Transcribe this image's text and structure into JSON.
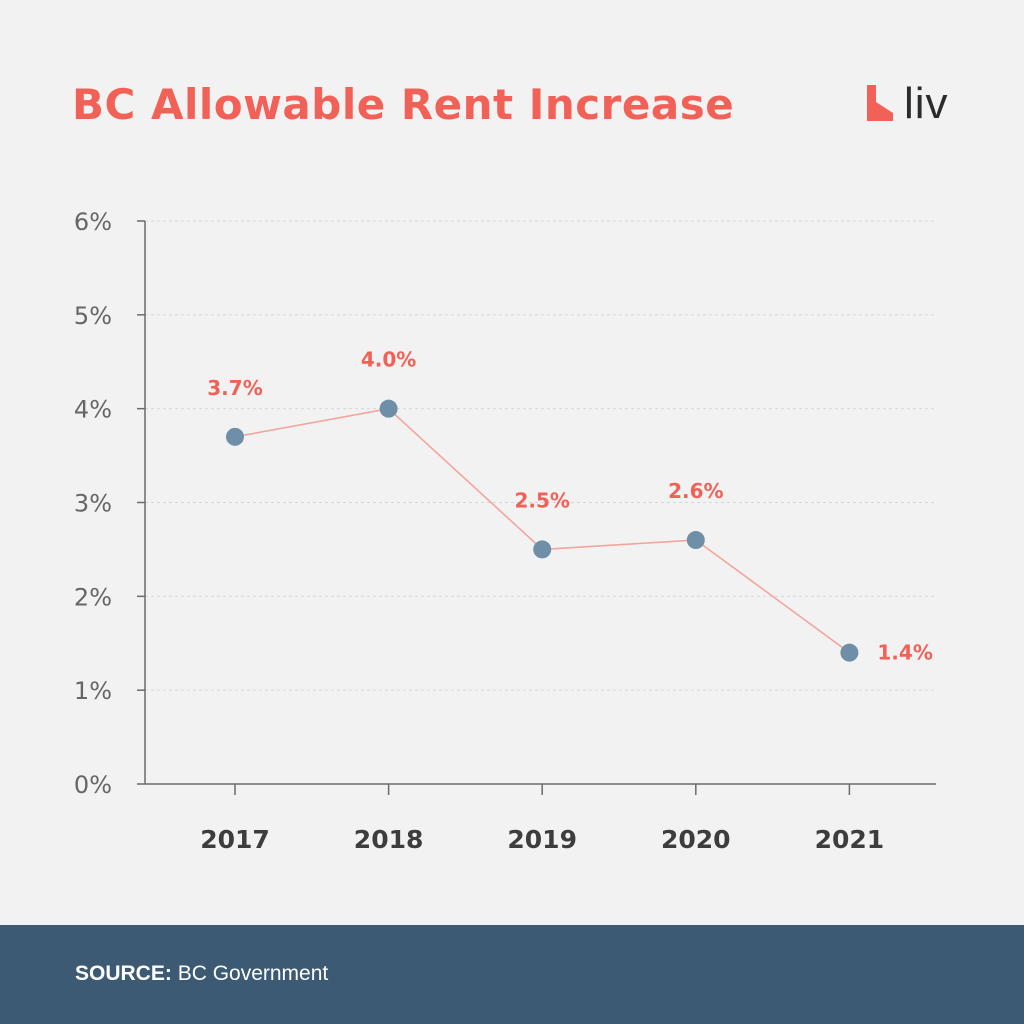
{
  "header": {
    "title": "BC Allowable Rent Increase",
    "logo_text": "liv"
  },
  "colors": {
    "accent": "#f26157",
    "line": "#f4a49c",
    "point": "#6f8ea8",
    "axis": "#6b6b6b",
    "tick_text": "#666666",
    "x_text": "#3d3d3d",
    "grid": "#d6d6d6",
    "background": "#f2f2f2",
    "footer_bg": "#3d5a75"
  },
  "chart_data": {
    "type": "line",
    "title": "BC Allowable Rent Increase",
    "xlabel": "",
    "ylabel": "",
    "categories": [
      "2017",
      "2018",
      "2019",
      "2020",
      "2021"
    ],
    "series": [
      {
        "values": [
          3.7,
          4.0,
          2.5,
          2.6,
          1.4
        ],
        "labels": [
          "3.7%",
          "4.0%",
          "2.5%",
          "2.6%",
          "1.4%"
        ]
      }
    ],
    "ylim": [
      0,
      6
    ],
    "yticks": [
      0,
      1,
      2,
      3,
      4,
      5,
      6
    ],
    "ytick_labels": [
      "0%",
      "1%",
      "2%",
      "3%",
      "4%",
      "5%",
      "6%"
    ],
    "grid": true,
    "legend": "none"
  },
  "footer": {
    "source_label": "SOURCE:",
    "source_value": "BC Government"
  }
}
